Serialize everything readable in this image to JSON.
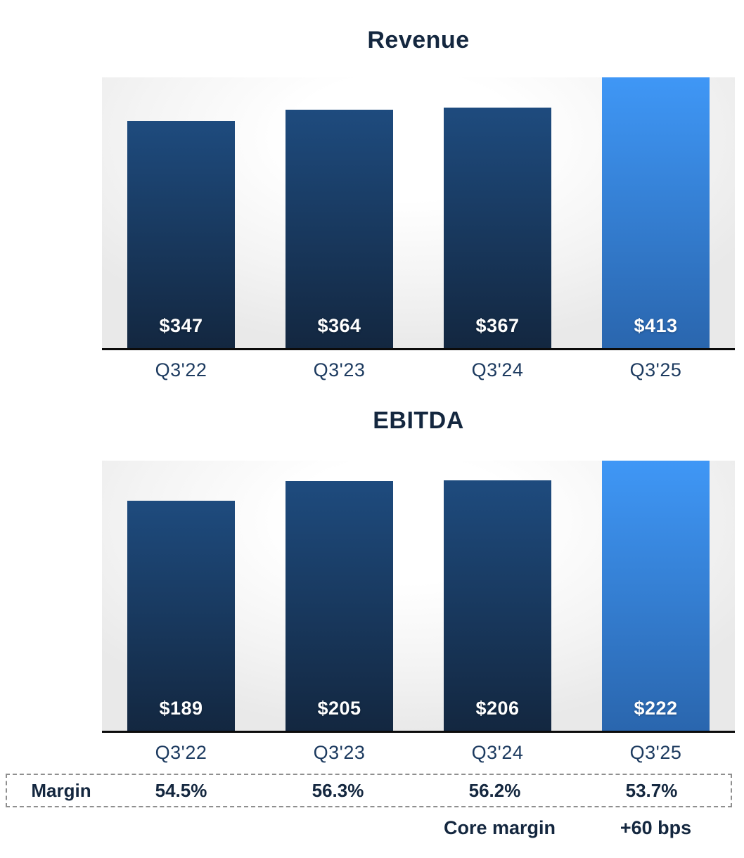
{
  "colors": {
    "navy_text": "#14273F",
    "category_label": "#1C3A5F",
    "bar_dark_top": "#1E4B7E",
    "bar_dark_bottom": "#132740",
    "bar_highlight_top": "#3F97F6",
    "bar_highlight_bottom": "#2A66AE",
    "value_label": "#FFFFFF",
    "axis": "#0B0B0B",
    "dashed_border": "#8F8F8F"
  },
  "chart_data": [
    {
      "type": "bar",
      "title": "Revenue",
      "categories": [
        "Q3'22",
        "Q3'23",
        "Q3'24",
        "Q3'25"
      ],
      "values": [
        347,
        364,
        367,
        413
      ],
      "value_labels": [
        "$347",
        "$364",
        "$367",
        "$413"
      ],
      "highlight_index": 3,
      "ylim": [
        0,
        413
      ],
      "gridlines": false,
      "legend": false,
      "value_label_position": "inside-bottom"
    },
    {
      "type": "bar",
      "title": "EBITDA",
      "categories": [
        "Q3'22",
        "Q3'23",
        "Q3'24",
        "Q3'25"
      ],
      "values": [
        189,
        205,
        206,
        222
      ],
      "value_labels": [
        "$189",
        "$205",
        "$206",
        "$222"
      ],
      "highlight_index": 3,
      "ylim": [
        0,
        222
      ],
      "gridlines": false,
      "legend": false,
      "value_label_position": "inside-bottom"
    }
  ],
  "margin_table": {
    "row_label": "Margin",
    "values": [
      "54.5%",
      "56.3%",
      "56.2%",
      "53.7%"
    ]
  },
  "footnote": {
    "core_margin_label": "Core margin",
    "core_margin_delta": "+60 bps"
  }
}
